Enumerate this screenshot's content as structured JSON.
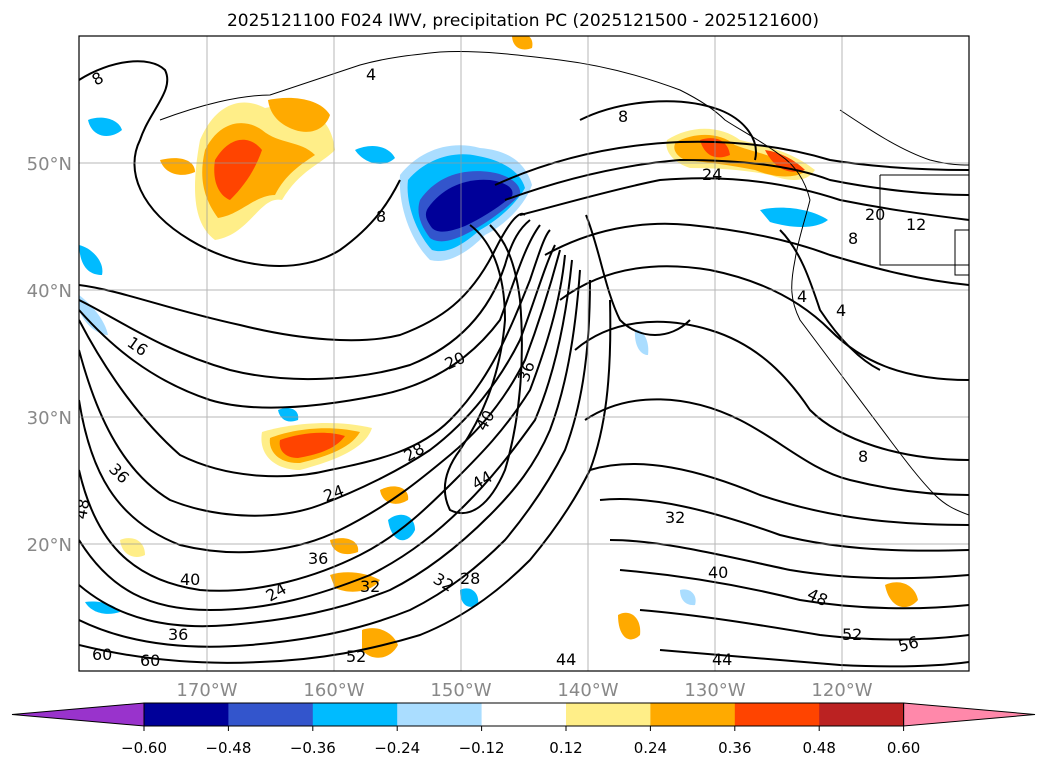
{
  "title": "2025121100 F024 IWV, precipitation PC (2025121500 - 2025121600)",
  "map": {
    "lat_labels": [
      "50°N",
      "40°N",
      "30°N",
      "20°N"
    ],
    "lon_labels": [
      "170°W",
      "160°W",
      "150°W",
      "140°W",
      "130°W",
      "120°W"
    ],
    "grid": true,
    "coastline": "North America west coast",
    "contour_labels": [
      "8",
      "8",
      "8",
      "8",
      "8",
      "12",
      "16",
      "20",
      "20",
      "24",
      "24",
      "24",
      "28",
      "28",
      "32",
      "32",
      "32",
      "36",
      "36",
      "36",
      "36",
      "40",
      "40",
      "40",
      "44",
      "44",
      "44",
      "48",
      "48",
      "52",
      "52",
      "56",
      "60",
      "60",
      "4",
      "4",
      "4"
    ]
  },
  "colorbar": {
    "ticks": [
      "−0.60",
      "−0.48",
      "−0.36",
      "−0.24",
      "−0.12",
      "0.12",
      "0.24",
      "0.36",
      "0.48",
      "0.60"
    ],
    "colors": [
      "#9933cc",
      "#000099",
      "#3355cc",
      "#00bbff",
      "#aaddff",
      "#ffffff",
      "#ffee88",
      "#ffaa00",
      "#ff4400",
      "#bb2222",
      "#ff88aa"
    ],
    "extend": "both"
  }
}
